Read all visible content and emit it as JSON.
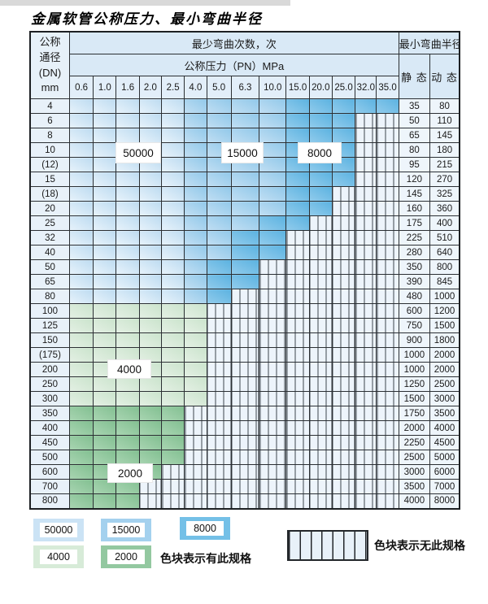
{
  "page": {
    "title": "金属软管公称压力、最小弯曲半径"
  },
  "table": {
    "corner": {
      "line1": "公称",
      "line2": "通径",
      "line3": "(DN)",
      "line4": "mm"
    },
    "bend_cycles_header": "最少弯曲次数，次",
    "pressure_header": "公称压力（PN）MPa",
    "radius_header": "最小弯曲半径",
    "static_label": "静 态",
    "dynamic_label": "动 态",
    "pressures": [
      "0.6",
      "1.0",
      "1.6",
      "2.0",
      "2.5",
      "4.0",
      "5.0",
      "6.3",
      "10.0",
      "15.0",
      "20.0",
      "25.0",
      "32.0",
      "35.0"
    ],
    "cell_legend_note": "L=50000 cycles, M=15000 cycles, D=8000 cycles, A=4000 cycles, B=2000 cycles, H=no spec",
    "rows": [
      {
        "dn": "4",
        "cells": "LLLLLMMMMDDDDD",
        "static": "35",
        "dynamic": "80"
      },
      {
        "dn": "6",
        "cells": "LLLLLMMMMDDDHH",
        "static": "50",
        "dynamic": "110"
      },
      {
        "dn": "8",
        "cells": "LLLLLMMMMDDDHH",
        "static": "65",
        "dynamic": "145"
      },
      {
        "dn": "10",
        "cells": "LLLLLMMMMDDDHH",
        "static": "80",
        "dynamic": "180"
      },
      {
        "dn": "(12)",
        "cells": "LLLLLMMMMDDDHH",
        "static": "95",
        "dynamic": "215"
      },
      {
        "dn": "15",
        "cells": "LLLLLMMMMDDDHH",
        "static": "120",
        "dynamic": "270"
      },
      {
        "dn": "(18)",
        "cells": "LLLLLMMMMDDHHH",
        "static": "145",
        "dynamic": "325"
      },
      {
        "dn": "20",
        "cells": "LLLLLMMMMDDHHH",
        "static": "160",
        "dynamic": "360"
      },
      {
        "dn": "25",
        "cells": "LLLLLMMMDDHHHH",
        "static": "175",
        "dynamic": "400"
      },
      {
        "dn": "32",
        "cells": "LLLLLMMDDHHHHH",
        "static": "225",
        "dynamic": "510"
      },
      {
        "dn": "40",
        "cells": "LLLLLMMDDHHHHH",
        "static": "280",
        "dynamic": "640"
      },
      {
        "dn": "50",
        "cells": "LLLLLMDDHHHHHH",
        "static": "350",
        "dynamic": "800"
      },
      {
        "dn": "65",
        "cells": "LLLLLMDDHHHHHH",
        "static": "390",
        "dynamic": "845"
      },
      {
        "dn": "80",
        "cells": "LLLLLMDHHHHHHH",
        "static": "480",
        "dynamic": "1000"
      },
      {
        "dn": "100",
        "cells": "AAAAAAHHHHHHHH",
        "static": "600",
        "dynamic": "1200"
      },
      {
        "dn": "125",
        "cells": "AAAAAAHHHHHHHH",
        "static": "750",
        "dynamic": "1500"
      },
      {
        "dn": "150",
        "cells": "AAAAAAHHHHHHHH",
        "static": "900",
        "dynamic": "1800"
      },
      {
        "dn": "(175)",
        "cells": "AAAAAAHHHHHHHH",
        "static": "1000",
        "dynamic": "2000"
      },
      {
        "dn": "200",
        "cells": "AAAAAAHHHHHHHH",
        "static": "1000",
        "dynamic": "2000"
      },
      {
        "dn": "250",
        "cells": "AAAAAAHHHHHHHH",
        "static": "1250",
        "dynamic": "2500"
      },
      {
        "dn": "300",
        "cells": "AAAAAAHHHHHHHH",
        "static": "1500",
        "dynamic": "3000"
      },
      {
        "dn": "350",
        "cells": "BBBBBHHHHHHHHH",
        "static": "1750",
        "dynamic": "3500"
      },
      {
        "dn": "400",
        "cells": "BBBBBHHHHHHHHH",
        "static": "2000",
        "dynamic": "4000"
      },
      {
        "dn": "450",
        "cells": "BBBBBHHHHHHHHH",
        "static": "2250",
        "dynamic": "4500"
      },
      {
        "dn": "500",
        "cells": "BBBBBHHHHHHHHH",
        "static": "2500",
        "dynamic": "5000"
      },
      {
        "dn": "600",
        "cells": "BBBBHHHHHHHHHH",
        "static": "3000",
        "dynamic": "6000"
      },
      {
        "dn": "700",
        "cells": "BBBHHHHHHHHHHH",
        "static": "3500",
        "dynamic": "7000"
      },
      {
        "dn": "800",
        "cells": "BBBHHHHHHHHHHH",
        "static": "4000",
        "dynamic": "8000"
      }
    ]
  },
  "overlays": {
    "v50000": "50000",
    "v15000": "15000",
    "v8000": "8000",
    "v4000": "4000",
    "v2000": "2000"
  },
  "legend": {
    "row1": [
      {
        "id": "lg-50000",
        "label": "50000"
      },
      {
        "id": "lg-15000",
        "label": "15000"
      },
      {
        "id": "lg-8000",
        "label": "8000"
      }
    ],
    "row2": [
      {
        "id": "lg-4000",
        "label": "4000"
      },
      {
        "id": "lg-2000",
        "label": "2000"
      }
    ],
    "has_spec_text": "色块表示有此规格",
    "no_spec_text": "色块表示无此规格"
  },
  "colors": {
    "blue_50000": "#cbe3f5",
    "blue_15000": "#a4d1ee",
    "blue_8000": "#74c0e7",
    "green_4000": "#d7ebd8",
    "green_2000": "#93c8a0",
    "hatch_bg": "#edf4fb",
    "grid_line": "#2b2f33",
    "header_bg": "#d9e9f6"
  }
}
